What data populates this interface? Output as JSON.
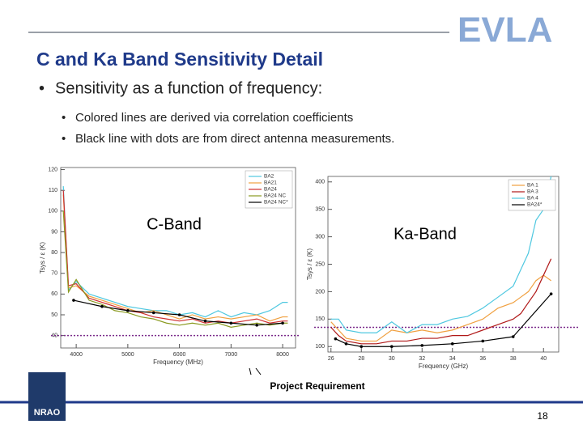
{
  "slide": {
    "logo": "EVLA",
    "title": "C and Ka Band Sensitivity Detail",
    "bullet": "Sensitivity as a function of frequency:",
    "sub_bullets": [
      "Colored lines are derived via correlation coefficients",
      "Black line with dots are from direct antenna measurements."
    ],
    "annotation": "Project Requirement",
    "org": "NRAO",
    "page_number": "18"
  },
  "chart_data": [
    {
      "type": "line",
      "band_label": "C-Band",
      "xlabel": "Frequency (MHz)",
      "ylabel": "Tsys / ε (K)",
      "x": [
        3750,
        3850,
        4000,
        4250,
        4500,
        4750,
        5000,
        5250,
        5500,
        5750,
        6000,
        6250,
        6500,
        6750,
        7000,
        7250,
        7500,
        7750,
        8000,
        8100
      ],
      "xlim": [
        3700,
        8250
      ],
      "ylim": [
        34,
        121
      ],
      "xticks": [
        4000,
        5000,
        6000,
        7000,
        8000
      ],
      "yticks": [
        40,
        50,
        60,
        70,
        80,
        90,
        100,
        110,
        120
      ],
      "legend": "upper right",
      "requirement": 40,
      "requirement_color": "#7a2a8a",
      "series": [
        {
          "name": "BA2",
          "color": "#4fc8e0",
          "values": [
            112,
            62,
            66,
            60,
            58,
            56,
            54,
            53,
            52,
            52,
            50,
            51,
            49,
            52,
            49,
            51,
            50,
            52,
            56,
            56
          ]
        },
        {
          "name": "BA21",
          "color": "#f0a040",
          "values": [
            108,
            63,
            64,
            59,
            57,
            55,
            53,
            51,
            52,
            50,
            48,
            50,
            48,
            49,
            48,
            49,
            50,
            47,
            49,
            49
          ]
        },
        {
          "name": "BA24",
          "color": "#d03030",
          "values": [
            110,
            64,
            65,
            58,
            56,
            54,
            52,
            51,
            49,
            48,
            47,
            48,
            46,
            47,
            46,
            47,
            48,
            46,
            47,
            47
          ]
        },
        {
          "name": "BA24 NC",
          "color": "#8a9a20",
          "values": [
            100,
            61,
            67,
            57,
            55,
            52,
            51,
            49,
            48,
            46,
            45,
            46,
            45,
            46,
            44,
            45,
            46,
            45,
            46,
            46
          ]
        },
        {
          "name": "BA24 NC*",
          "color": "#000000",
          "markers": true,
          "x": [
            3950,
            4500,
            5000,
            5500,
            6000,
            6500,
            7000,
            7500,
            8000
          ],
          "values": [
            57,
            54,
            52,
            51,
            50,
            47,
            46,
            45,
            46
          ]
        }
      ]
    },
    {
      "type": "line",
      "band_label": "Ka-Band",
      "xlabel": "Frequency (GHz)",
      "ylabel": "Tsys / ε (K)",
      "x": [
        26,
        26.5,
        27,
        28,
        29,
        30,
        31,
        32,
        33,
        34,
        35,
        36,
        37,
        38,
        38.5,
        39,
        39.5,
        40,
        40.5
      ],
      "xlim": [
        25.8,
        41
      ],
      "ylim": [
        90,
        410
      ],
      "xticks": [
        26,
        28,
        30,
        32,
        34,
        36,
        38,
        40
      ],
      "yticks": [
        100,
        150,
        200,
        250,
        300,
        350,
        400
      ],
      "legend": "upper right",
      "requirement": 135,
      "requirement_color": "#7a2a8a",
      "series": [
        {
          "name": "BA 1",
          "color": "#f0a040",
          "values": [
            145,
            130,
            115,
            110,
            110,
            130,
            125,
            130,
            125,
            130,
            140,
            150,
            170,
            180,
            190,
            200,
            220,
            230,
            220
          ]
        },
        {
          "name": "BA 3",
          "color": "#b01818",
          "values": [
            135,
            120,
            110,
            105,
            105,
            110,
            110,
            115,
            115,
            120,
            120,
            130,
            140,
            150,
            160,
            180,
            200,
            230,
            260
          ]
        },
        {
          "name": "BA 4",
          "color": "#4fc8e0",
          "values": [
            150,
            150,
            130,
            125,
            125,
            145,
            125,
            140,
            140,
            150,
            155,
            170,
            190,
            210,
            240,
            270,
            330,
            350,
            410
          ]
        },
        {
          "name": "BA24*",
          "color": "#000000",
          "markers": true,
          "x": [
            26.3,
            27,
            28,
            30,
            32,
            34,
            36,
            38,
            40.5
          ],
          "values": [
            114,
            105,
            100,
            100,
            102,
            105,
            110,
            118,
            196
          ]
        }
      ]
    }
  ]
}
